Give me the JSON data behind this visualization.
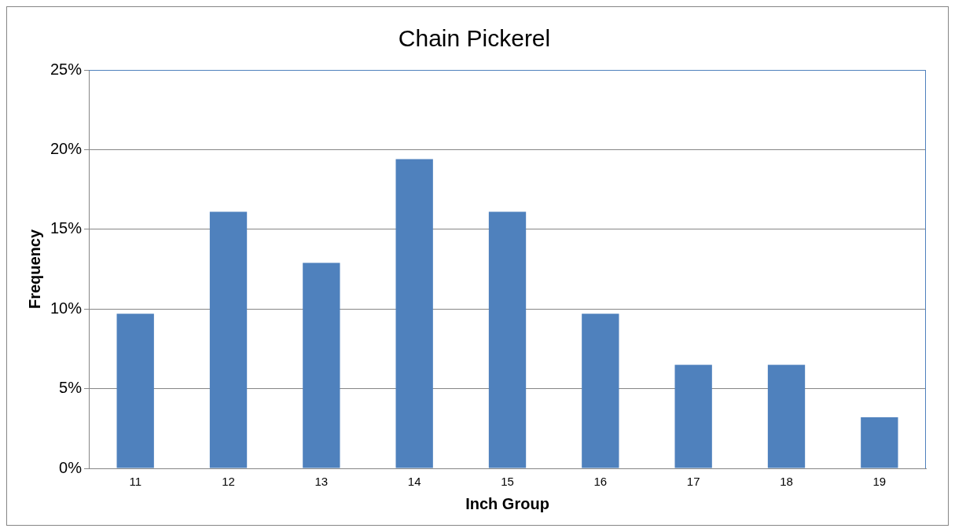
{
  "chart_data": {
    "type": "bar",
    "title": "Chain Pickerel",
    "xlabel": "Inch Group",
    "ylabel": "Frequency",
    "categories": [
      "11",
      "12",
      "13",
      "14",
      "15",
      "16",
      "17",
      "18",
      "19"
    ],
    "values": [
      9.7,
      16.1,
      12.9,
      19.4,
      16.1,
      9.7,
      6.5,
      6.5,
      3.2
    ],
    "color": "#4f81bd",
    "ylim": [
      0,
      25
    ],
    "yticks": [
      {
        "value": 0,
        "label": "0%"
      },
      {
        "value": 5,
        "label": "5%"
      },
      {
        "value": 10,
        "label": "10%"
      },
      {
        "value": 15,
        "label": "15%"
      },
      {
        "value": 20,
        "label": "20%"
      },
      {
        "value": 25,
        "label": "25%"
      }
    ],
    "grid": "y",
    "legend": false
  }
}
